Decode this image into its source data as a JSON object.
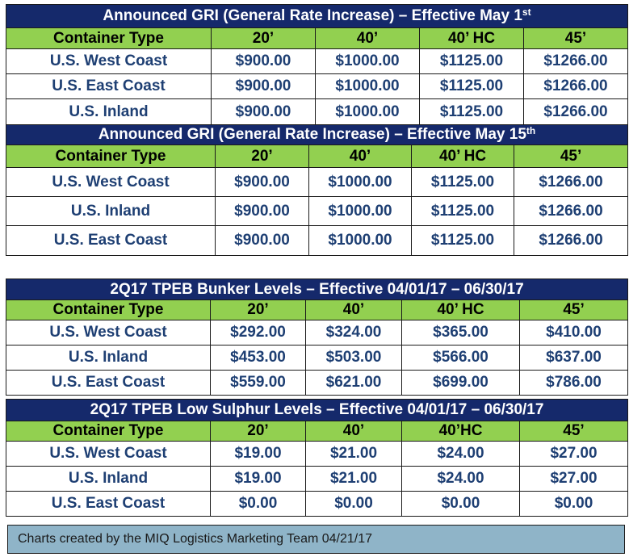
{
  "col_widths_note": "",
  "tables": [
    {
      "title": "Announced GRI (General Rate Increase) – Effective May 1",
      "title_sup": "st",
      "headers": [
        "Container Type",
        "20’",
        "40’",
        "40’ HC",
        "45’"
      ],
      "rows": [
        [
          "U.S. West Coast",
          "$900.00",
          "$1000.00",
          "$1125.00",
          "$1266.00"
        ],
        [
          "U.S. East Coast",
          "$900.00",
          "$1000.00",
          "$1125.00",
          "$1266.00"
        ],
        [
          "U.S. Inland",
          "$900.00",
          "$1000.00",
          "$1125.00",
          "$1266.00"
        ]
      ]
    },
    {
      "title": "Announced GRI (General Rate Increase) – Effective May 15",
      "title_sup": "th",
      "headers": [
        "Container Type",
        "20’",
        "40’",
        "40’ HC",
        "45’"
      ],
      "rows": [
        [
          "U.S. West Coast",
          "$900.00",
          "$1000.00",
          "$1125.00",
          "$1266.00"
        ],
        [
          "U.S. Inland",
          "$900.00",
          "$1000.00",
          "$1125.00",
          "$1266.00"
        ],
        [
          "U.S. East Coast",
          "$900.00",
          "$1000.00",
          "$1125.00",
          "$1266.00"
        ]
      ]
    },
    {
      "title": "2Q17 TPEB Bunker Levels – Effective 04/01/17 – 06/30/17",
      "title_sup": "",
      "headers": [
        "Container Type",
        "20’",
        "40’",
        "40’ HC",
        "45’"
      ],
      "rows": [
        [
          "U.S. West Coast",
          "$292.00",
          "$324.00",
          "$365.00",
          "$410.00"
        ],
        [
          "U.S. Inland",
          "$453.00",
          "$503.00",
          "$566.00",
          "$637.00"
        ],
        [
          "U.S. East Coast",
          "$559.00",
          "$621.00",
          "$699.00",
          "$786.00"
        ]
      ]
    },
    {
      "title": "2Q17 TPEB Low Sulphur Levels – Effective 04/01/17 – 06/30/17",
      "title_sup": "",
      "headers": [
        "Container Type",
        "20’",
        "40’",
        "40’HC",
        "45’"
      ],
      "rows": [
        [
          "U.S. West Coast",
          "$19.00",
          "$21.00",
          "$24.00",
          "$27.00"
        ],
        [
          "U.S. Inland",
          "$19.00",
          "$21.00",
          "$24.00",
          "$27.00"
        ],
        [
          "U.S. East Coast",
          "$0.00",
          "$0.00",
          "$0.00",
          "$0.00"
        ]
      ]
    }
  ],
  "footer": "Charts created by the MIQ Logistics Marketing Team 04/21/17",
  "colors": {
    "title_bg": "#15296b",
    "header_bg": "#92d050",
    "value_text": "#1e3f73",
    "footer_bg": "#8fb4c8"
  }
}
